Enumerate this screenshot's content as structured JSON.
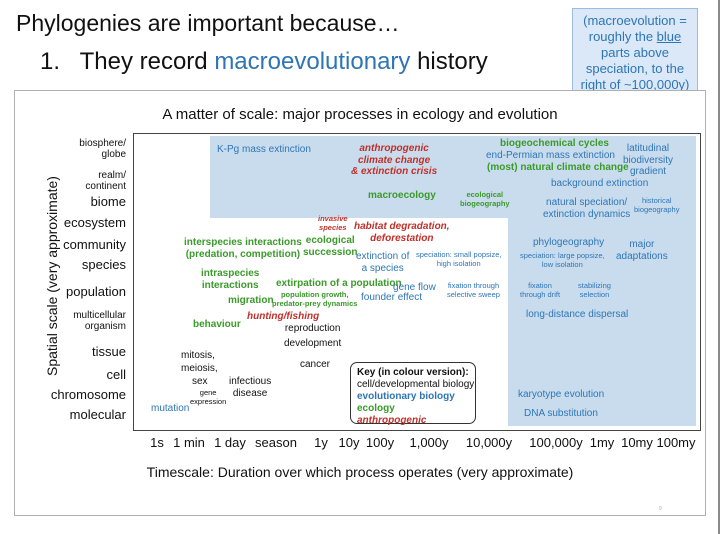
{
  "slide": {
    "title": "Phylogenies are important because…",
    "point_number": "1.",
    "point_text_prefix": "They record ",
    "point_text_highlight": "macroevolutionary",
    "point_text_suffix": " history",
    "note_line1": "(macroevolution =",
    "note_line2a": "roughly the ",
    "note_line2b": "blue",
    "note_line3": "parts above",
    "note_line4": "speciation, to the",
    "note_line5": "right of ~100,000y)",
    "page_number": "9"
  },
  "figure": {
    "title": "A matter of scale: major processes in ecology and evolution",
    "ylabel": "Spatial scale (very approximate)",
    "xlabel": "Timescale: Duration over which process operates (very approximate)",
    "y_ticks": [
      {
        "a": "biosphere/",
        "b": "globe"
      },
      {
        "a": "realm/",
        "b": "continent"
      },
      {
        "a": "biome"
      },
      {
        "a": "ecosystem"
      },
      {
        "a": "community"
      },
      {
        "a": "species"
      },
      {
        "a": "population"
      },
      {
        "a": "multicellular",
        "b": "organism"
      },
      {
        "a": "tissue"
      },
      {
        "a": "cell"
      },
      {
        "a": "chromosome"
      },
      {
        "a": "molecular"
      }
    ],
    "x_ticks": [
      "1s",
      "1 min",
      "1 day",
      "season",
      "1y",
      "10y",
      "100y",
      "1,000y",
      "10,000y",
      "100,000y",
      "1my",
      "10my",
      "100my"
    ],
    "labels": {
      "kpg": "K-Pg mass extinction",
      "anthro_cc1": "anthropogenic",
      "anthro_cc2": "climate change",
      "anthro_cc3": "& extinction crisis",
      "biogeochem": "biogeochemical cycles",
      "endperm": "end-Permian mass extinction",
      "natcc": "(most) natural climate change",
      "lat1": "latitudinal",
      "lat2": "biodiversity",
      "lat3": "gradient",
      "bgext": "background extinction",
      "macroeco": "macroecology",
      "ecobg1": "ecological",
      "ecobg2": "biogeography",
      "natspec1": "natural speciation/",
      "natspec2": "extinction dynamics",
      "histbg1": "historical",
      "histbg2": "biogeography",
      "inv1": "invasive",
      "inv2": "species",
      "habdeg1": "habitat degradation,",
      "habdeg2": "deforestation",
      "inter1": "interspecies interactions",
      "inter2": "(predation, competition)",
      "ecosucc1": "ecological",
      "ecosucc2": "succession",
      "extsp1": "extinction of",
      "extsp2": "a species",
      "specsmall1": "speciation: small popsize,",
      "specsmall2": "high isolation",
      "phylogeo": "phylogeography",
      "majad1": "major",
      "majad2": "adaptations",
      "speclarge1": "speciation: large popsize,",
      "speclarge2": "low isolation",
      "intra1": "intraspecies",
      "intra2": "interactions",
      "extirp": "extirpation of a population",
      "geneflow": "gene flow",
      "fixsweep1": "fixation through",
      "fixsweep2": "selective sweep",
      "fixdrift1": "fixation",
      "fixdrift2": "through drift",
      "stabsel1": "stabilizing",
      "stabsel2": "selection",
      "migration": "migration",
      "popgrowth": "population growth,",
      "predprey": "predator-prey dynamics",
      "founder": "founder effect",
      "hunting": "hunting/fishing",
      "ldd": "long-distance dispersal",
      "behaviour": "behaviour",
      "repro": "reproduction",
      "devel": "development",
      "mitosis": "mitosis,",
      "meiosis": "meiosis,",
      "sex": "sex",
      "cancer": "cancer",
      "infect1": "infectious",
      "infect2": "disease",
      "geneexp1": "gene",
      "geneexp2": "expression",
      "mutation": "mutation",
      "karyo": "karyotype evolution",
      "dnasub": "DNA substitution"
    },
    "key": {
      "title": "Key (in colour version):",
      "black": "cell/developmental biology",
      "blue": "evolutionary biology",
      "green": "ecology",
      "red": "anthropogenic"
    }
  },
  "colors": {
    "blue": "#2e75b6",
    "green": "#3a9a2a",
    "red": "#c0302a",
    "shade": "#c9dced"
  }
}
